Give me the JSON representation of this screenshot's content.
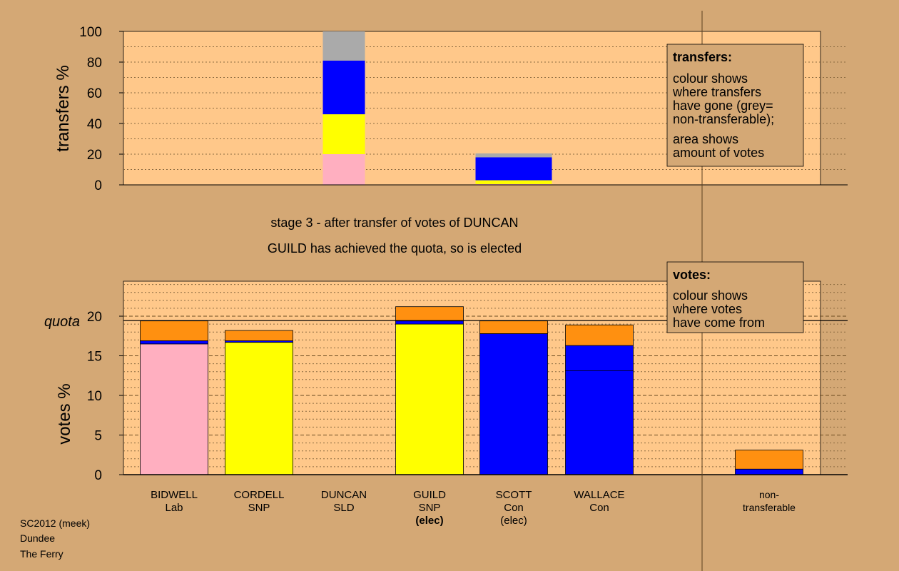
{
  "chart_data": [
    {
      "type": "bar",
      "stacked": true,
      "title": "transfers",
      "ylabel": "transfers %",
      "ylim": [
        0,
        100
      ],
      "yticks": [
        0,
        20,
        40,
        60,
        80,
        100
      ],
      "grid": "dotted every 10",
      "categories": [
        "DUNCAN",
        "SCOTT"
      ],
      "series": [
        {
          "name": "Lab",
          "color": "#ffafc0",
          "values": [
            20,
            0.5
          ]
        },
        {
          "name": "SNP",
          "color": "#ffff00",
          "values": [
            26,
            2.5
          ]
        },
        {
          "name": "Con",
          "color": "#0000ff",
          "values": [
            35,
            15
          ]
        },
        {
          "name": "non-transferable",
          "color": "#aaaaaa",
          "values": [
            19,
            2.5
          ]
        }
      ]
    },
    {
      "type": "bar",
      "stacked": true,
      "title": "votes",
      "ylabel": "votes %",
      "ylim": [
        0,
        24.5
      ],
      "yticks": [
        0,
        5,
        10,
        15,
        20
      ],
      "quota": 19.45,
      "quota_label": "quota",
      "categories": [
        "BIDWELL",
        "CORDELL",
        "DUNCAN",
        "GUILD",
        "SCOTT",
        "WALLACE",
        "non-transferable"
      ],
      "category_labels": [
        [
          "BIDWELL",
          "Lab",
          ""
        ],
        [
          "CORDELL",
          "SNP",
          ""
        ],
        [
          "DUNCAN",
          "SLD",
          ""
        ],
        [
          "GUILD",
          "SNP",
          "(elec)"
        ],
        [
          "SCOTT",
          "Con",
          "(elec)"
        ],
        [
          "WALLACE",
          "Con",
          ""
        ],
        [
          "non-",
          "transferable",
          ""
        ]
      ],
      "bars": [
        [
          {
            "color": "#ffafc0",
            "value": 16.5
          },
          {
            "color": "#0000ff",
            "value": 0.4
          },
          {
            "color": "#ff9010",
            "value": 2.5
          }
        ],
        [
          {
            "color": "#ffff00",
            "value": 16.7
          },
          {
            "color": "#0000ff",
            "value": 0.2
          },
          {
            "color": "#ff9010",
            "value": 1.3
          }
        ],
        [],
        [
          {
            "color": "#ffff00",
            "value": 19.0
          },
          {
            "color": "#0000ff",
            "value": 0.4
          },
          {
            "color": "#ff9010",
            "value": 1.8
          }
        ],
        [
          {
            "color": "#0000ff",
            "value": 17.8
          },
          {
            "color": "#ff9010",
            "value": 1.6
          }
        ],
        [
          {
            "color": "#0000ff",
            "value": 13.1
          },
          {
            "color": "#0000ff",
            "value": 3.2
          },
          {
            "color": "#ff9010",
            "value": 2.6
          }
        ],
        [
          {
            "color": "#0000ff",
            "value": 0.7
          },
          {
            "color": "#ff9010",
            "value": 2.4
          }
        ]
      ]
    }
  ],
  "stage_title": "stage 3 - after transfer of votes of DUNCAN",
  "stage_note": "GUILD has achieved the quota, so is elected",
  "legend_transfers": {
    "title": "transfers:",
    "lines1": [
      "colour shows",
      "where transfers",
      "have gone (grey=",
      "non-transferable);"
    ],
    "lines2": [
      "area shows",
      "amount of votes"
    ]
  },
  "legend_votes": {
    "title": "votes:",
    "lines": [
      "colour shows",
      "where votes",
      "have come from"
    ]
  },
  "footer": [
    "SC2012 (meek)",
    "Dundee",
    "The Ferry"
  ],
  "colors": {
    "background": "#d4a875",
    "plot": "#ffc88a"
  }
}
